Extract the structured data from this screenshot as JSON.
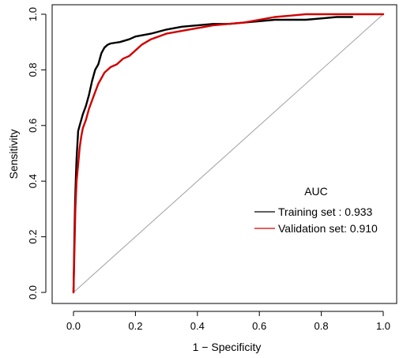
{
  "chart_data": {
    "type": "line",
    "xlabel": "1 − Specificity",
    "ylabel": "Sensitivity",
    "xlim": [
      0,
      1
    ],
    "ylim": [
      0,
      1
    ],
    "x_ticks": [
      0.0,
      0.2,
      0.4,
      0.6,
      0.8,
      1.0
    ],
    "y_ticks": [
      0.0,
      0.2,
      0.4,
      0.6,
      0.8,
      1.0
    ],
    "x_tick_labels": [
      "0.0",
      "0.2",
      "0.4",
      "0.6",
      "0.8",
      "1.0"
    ],
    "y_tick_labels": [
      "0.0",
      "0.2",
      "0.4",
      "0.6",
      "0.8",
      "1.0"
    ],
    "legend": {
      "title": "AUC",
      "placement": "bottom-right",
      "entries": [
        {
          "label": "Training set   : 0.933",
          "color": "#000000"
        },
        {
          "label": "Validation set: 0.910",
          "color": "#d00000"
        }
      ]
    },
    "reference_line": {
      "x": [
        0,
        1
      ],
      "y": [
        0,
        1
      ],
      "color": "#a0a0a0"
    },
    "series": [
      {
        "color": "#000000",
        "x": [
          0,
          0.003,
          0.005,
          0.008,
          0.01,
          0.015,
          0.02,
          0.025,
          0.03,
          0.04,
          0.05,
          0.06,
          0.07,
          0.08,
          0.09,
          0.1,
          0.11,
          0.12,
          0.15,
          0.18,
          0.2,
          0.25,
          0.3,
          0.35,
          0.4,
          0.45,
          0.5,
          0.55,
          0.6,
          0.65,
          0.7,
          0.75,
          0.8,
          0.85,
          0.9
        ],
        "y": [
          0,
          0.2,
          0.32,
          0.42,
          0.48,
          0.58,
          0.6,
          0.62,
          0.64,
          0.67,
          0.71,
          0.76,
          0.8,
          0.82,
          0.86,
          0.88,
          0.89,
          0.895,
          0.9,
          0.91,
          0.92,
          0.93,
          0.945,
          0.955,
          0.96,
          0.965,
          0.965,
          0.97,
          0.975,
          0.98,
          0.98,
          0.98,
          0.985,
          0.99,
          0.99
        ]
      },
      {
        "color": "#d00000",
        "x": [
          0,
          0.003,
          0.006,
          0.01,
          0.015,
          0.02,
          0.025,
          0.03,
          0.04,
          0.05,
          0.06,
          0.07,
          0.08,
          0.09,
          0.1,
          0.11,
          0.12,
          0.14,
          0.16,
          0.18,
          0.2,
          0.22,
          0.25,
          0.3,
          0.35,
          0.4,
          0.45,
          0.5,
          0.55,
          0.6,
          0.65,
          0.7,
          0.75,
          0.8,
          0.85,
          0.9,
          0.95,
          1.0
        ],
        "y": [
          0,
          0.15,
          0.3,
          0.4,
          0.46,
          0.52,
          0.56,
          0.59,
          0.62,
          0.66,
          0.69,
          0.72,
          0.75,
          0.77,
          0.79,
          0.8,
          0.81,
          0.82,
          0.84,
          0.85,
          0.87,
          0.89,
          0.91,
          0.93,
          0.94,
          0.95,
          0.96,
          0.965,
          0.97,
          0.98,
          0.99,
          0.995,
          1.0,
          1.0,
          1.0,
          1.0,
          1.0,
          1.0
        ]
      }
    ]
  }
}
